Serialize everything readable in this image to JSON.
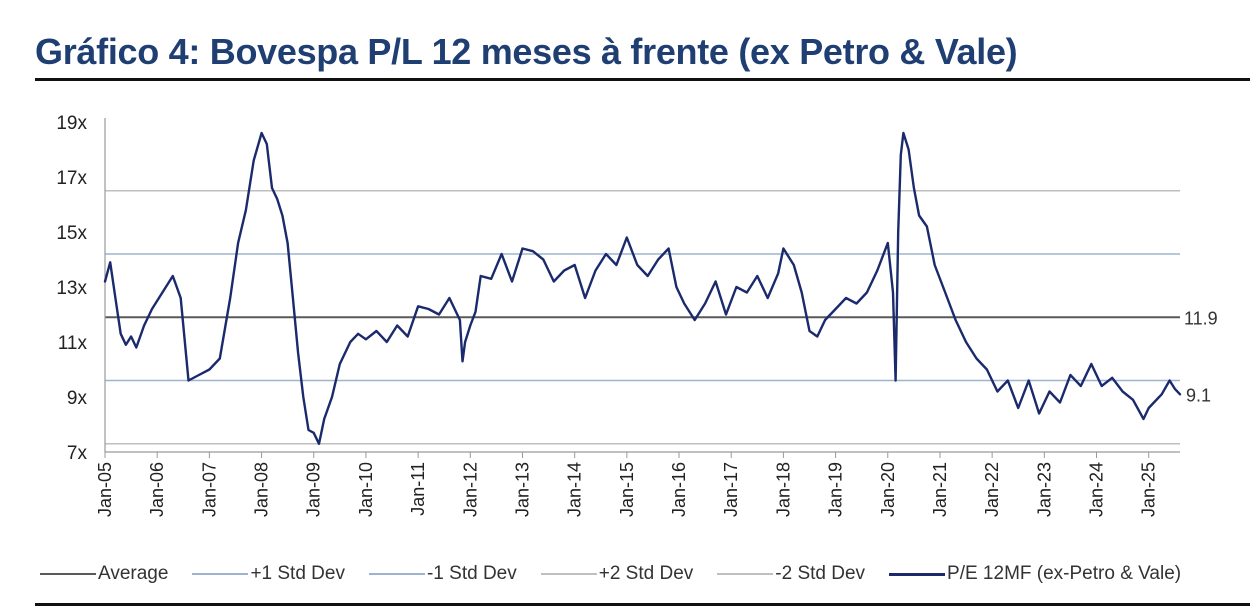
{
  "title": "Gráfico 4: Bovespa P/L 12 meses à frente (ex Petro & Vale)",
  "chart_data": {
    "type": "line",
    "ylim": [
      7,
      19
    ],
    "y_ticks": [
      7,
      9,
      11,
      13,
      15,
      17,
      19
    ],
    "y_tick_labels": [
      "7x",
      "9x",
      "11x",
      "13x",
      "15x",
      "17x",
      "19x"
    ],
    "x_range": [
      2005.0,
      2025.6
    ],
    "x_ticks": [
      2005,
      2006,
      2007,
      2008,
      2009,
      2010,
      2011,
      2012,
      2013,
      2014,
      2015,
      2016,
      2017,
      2018,
      2019,
      2020,
      2021,
      2022,
      2023,
      2024,
      2025
    ],
    "x_tick_labels": [
      "Jan-05",
      "Jan-06",
      "Jan-07",
      "Jan-08",
      "Jan-09",
      "Jan-10",
      "Jan-11",
      "Jan-12",
      "Jan-13",
      "Jan-14",
      "Jan-15",
      "Jan-16",
      "Jan-17",
      "Jan-18",
      "Jan-19",
      "Jan-20",
      "Jan-21",
      "Jan-22",
      "Jan-23",
      "Jan-24",
      "Jan-25"
    ],
    "grid": false,
    "legend_position": "bottom",
    "reference_lines": [
      {
        "name": "Average",
        "value": 11.9,
        "color": "#595959",
        "label": "11.9"
      },
      {
        "name": "+1 Std Dev",
        "value": 14.2,
        "color": "#9db3cf"
      },
      {
        "name": "-1 Std Dev",
        "value": 9.6,
        "color": "#9db3cf"
      },
      {
        "name": "+2 Std Dev",
        "value": 16.5,
        "color": "#bfbfbf"
      },
      {
        "name": "-2 Std Dev",
        "value": 7.3,
        "color": "#bfbfbf"
      }
    ],
    "series": [
      {
        "name": "P/E 12MF (ex-Petro & Vale)",
        "color": "#1a2a6c",
        "end_label": "9.1",
        "x": [
          2005.0,
          2005.1,
          2005.2,
          2005.3,
          2005.4,
          2005.5,
          2005.6,
          2005.75,
          2005.9,
          2006.1,
          2006.3,
          2006.45,
          2006.6,
          2006.8,
          2007.0,
          2007.2,
          2007.4,
          2007.55,
          2007.7,
          2007.85,
          2008.0,
          2008.1,
          2008.2,
          2008.3,
          2008.4,
          2008.5,
          2008.6,
          2008.7,
          2008.8,
          2008.9,
          2009.0,
          2009.1,
          2009.2,
          2009.35,
          2009.5,
          2009.7,
          2009.85,
          2010.0,
          2010.2,
          2010.4,
          2010.6,
          2010.8,
          2011.0,
          2011.2,
          2011.4,
          2011.6,
          2011.8,
          2011.85,
          2011.9,
          2012.0,
          2012.1,
          2012.2,
          2012.4,
          2012.6,
          2012.8,
          2013.0,
          2013.2,
          2013.4,
          2013.6,
          2013.8,
          2014.0,
          2014.2,
          2014.4,
          2014.6,
          2014.8,
          2015.0,
          2015.2,
          2015.4,
          2015.6,
          2015.8,
          2015.95,
          2016.1,
          2016.3,
          2016.5,
          2016.7,
          2016.9,
          2017.1,
          2017.3,
          2017.5,
          2017.7,
          2017.9,
          2018.0,
          2018.2,
          2018.35,
          2018.5,
          2018.65,
          2018.8,
          2019.0,
          2019.2,
          2019.4,
          2019.6,
          2019.8,
          2020.0,
          2020.1,
          2020.15,
          2020.2,
          2020.25,
          2020.3,
          2020.4,
          2020.5,
          2020.6,
          2020.75,
          2020.9,
          2021.1,
          2021.3,
          2021.5,
          2021.7,
          2021.9,
          2022.1,
          2022.3,
          2022.5,
          2022.7,
          2022.9,
          2023.1,
          2023.3,
          2023.5,
          2023.7,
          2023.9,
          2024.1,
          2024.3,
          2024.5,
          2024.7,
          2024.9,
          2025.0,
          2025.1,
          2025.25,
          2025.4,
          2025.5,
          2025.6
        ],
        "y": [
          13.2,
          13.9,
          12.6,
          11.3,
          10.9,
          11.2,
          10.8,
          11.6,
          12.2,
          12.8,
          13.4,
          12.6,
          9.6,
          9.8,
          10.0,
          10.4,
          12.6,
          14.6,
          15.8,
          17.6,
          18.6,
          18.2,
          16.6,
          16.2,
          15.6,
          14.6,
          12.6,
          10.6,
          9.0,
          7.8,
          7.7,
          7.3,
          8.2,
          9.0,
          10.2,
          11.0,
          11.3,
          11.1,
          11.4,
          11.0,
          11.6,
          11.2,
          12.3,
          12.2,
          12.0,
          12.6,
          11.8,
          10.3,
          11.0,
          11.6,
          12.1,
          13.4,
          13.3,
          14.2,
          13.2,
          14.4,
          14.3,
          14.0,
          13.2,
          13.6,
          13.8,
          12.6,
          13.6,
          14.2,
          13.8,
          14.8,
          13.8,
          13.4,
          14.0,
          14.4,
          13.0,
          12.4,
          11.8,
          12.4,
          13.2,
          12.0,
          13.0,
          12.8,
          13.4,
          12.6,
          13.5,
          14.4,
          13.8,
          12.8,
          11.4,
          11.2,
          11.8,
          12.2,
          12.6,
          12.4,
          12.8,
          13.6,
          14.6,
          12.8,
          9.6,
          15.0,
          17.8,
          18.6,
          18.0,
          16.6,
          15.6,
          15.2,
          13.8,
          12.8,
          11.8,
          11.0,
          10.4,
          10.0,
          9.2,
          9.6,
          8.6,
          9.6,
          8.4,
          9.2,
          8.8,
          9.8,
          9.4,
          10.2,
          9.4,
          9.7,
          9.2,
          8.9,
          8.2,
          8.6,
          8.8,
          9.1,
          9.6,
          9.3,
          9.1
        ]
      }
    ]
  },
  "legend": [
    {
      "label": "Average",
      "color": "#595959"
    },
    {
      "label": "+1 Std Dev",
      "color": "#9db3cf"
    },
    {
      "label": "-1 Std Dev",
      "color": "#9db3cf"
    },
    {
      "label": "+2 Std Dev",
      "color": "#bfbfbf"
    },
    {
      "label": "-2 Std Dev",
      "color": "#bfbfbf"
    },
    {
      "label": "P/E 12MF (ex-Petro & Vale)",
      "color": "#1a2a6c"
    }
  ]
}
